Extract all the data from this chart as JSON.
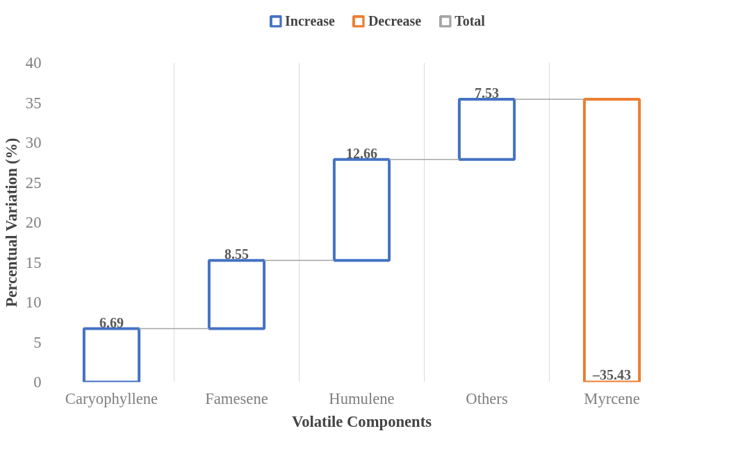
{
  "chart_data": {
    "type": "bar",
    "xlabel": "Volatile Components",
    "ylabel": "Percentual Variation (%)",
    "categories": [
      "Caryophyllene",
      "Famesene",
      "Humulene",
      "Others",
      "Myrcene"
    ],
    "series": [
      {
        "name": "Increase",
        "color": "#4472c4",
        "values": [
          6.69,
          8.55,
          12.66,
          7.53,
          null
        ],
        "base": [
          0,
          6.69,
          15.24,
          27.9,
          null
        ]
      },
      {
        "name": "Decrease",
        "color": "#ed7d31",
        "values": [
          null,
          null,
          null,
          null,
          -35.43
        ],
        "base": [
          null,
          null,
          null,
          null,
          35.43
        ]
      },
      {
        "name": "Total",
        "color": "#a5a5a5",
        "values": [
          null,
          null,
          null,
          null,
          null
        ]
      }
    ],
    "value_labels": [
      "6.69",
      "8.55",
      "12.66",
      "7.53",
      "–35.43"
    ],
    "ylim": [
      0,
      40
    ],
    "yticks": [
      0,
      5,
      10,
      15,
      20,
      25,
      30,
      35,
      40
    ],
    "grid": "x",
    "legend": "top"
  }
}
